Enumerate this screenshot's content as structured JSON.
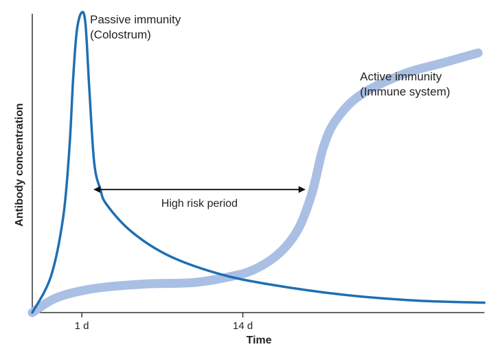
{
  "chart_data": {
    "type": "line",
    "title": "",
    "xlabel": "Time",
    "ylabel": "Antibody concentration",
    "x_ticks": [
      {
        "value": 1,
        "label": "1 d"
      },
      {
        "value": 14,
        "label": "14 d"
      }
    ],
    "xlim": [
      -3,
      33.5
    ],
    "ylim": [
      0,
      100
    ],
    "grid": false,
    "legend": "none",
    "series": [
      {
        "name": "Passive immunity (Colostrum)",
        "name_lines": [
          "Passive immunity",
          "(Colostrum)"
        ],
        "color": "#1f6fb2",
        "points": [
          [
            -3,
            0
          ],
          [
            -1.5,
            12
          ],
          [
            -0.5,
            32
          ],
          [
            0,
            55
          ],
          [
            0.3,
            78
          ],
          [
            0.6,
            94
          ],
          [
            1,
            100
          ],
          [
            1.3,
            96
          ],
          [
            1.6,
            75
          ],
          [
            2,
            50
          ],
          [
            2.5,
            41
          ],
          [
            3,
            36
          ],
          [
            5,
            27
          ],
          [
            8,
            19
          ],
          [
            12,
            13
          ],
          [
            16,
            9.5
          ],
          [
            22,
            6
          ],
          [
            28,
            4
          ],
          [
            33.5,
            3.3
          ]
        ]
      },
      {
        "name": "Active immunity (Immune system)",
        "name_lines": [
          "Active immunity",
          "(Immune system)"
        ],
        "color": "#a9bfe3",
        "points": [
          [
            -3,
            0
          ],
          [
            -1,
            5
          ],
          [
            2,
            8
          ],
          [
            6,
            9.5
          ],
          [
            10,
            10
          ],
          [
            13,
            12
          ],
          [
            15,
            14.5
          ],
          [
            17,
            20
          ],
          [
            18.5,
            28
          ],
          [
            19.6,
            40
          ],
          [
            20.5,
            55
          ],
          [
            21.5,
            64
          ],
          [
            23.5,
            72.5
          ],
          [
            27,
            79.5
          ],
          [
            30,
            83
          ],
          [
            33,
            86.5
          ]
        ]
      }
    ],
    "annotations": [
      {
        "text": "High risk period",
        "x_start": 2,
        "x_end": 19,
        "y": 41,
        "arrow": "double"
      }
    ]
  }
}
